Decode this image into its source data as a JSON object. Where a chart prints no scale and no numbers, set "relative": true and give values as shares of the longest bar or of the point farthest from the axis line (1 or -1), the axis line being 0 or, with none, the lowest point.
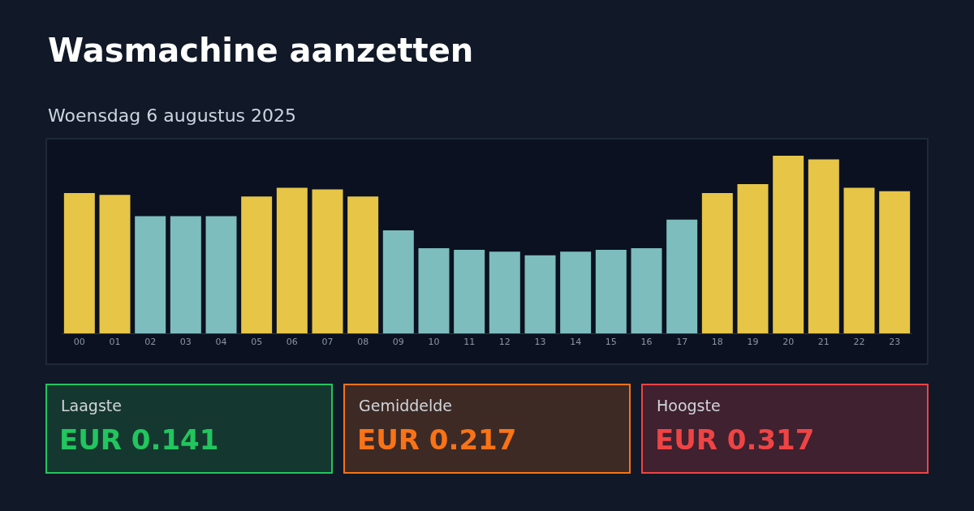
{
  "chart_data": {
    "type": "bar",
    "title": "Wasmachine aanzetten",
    "subtitle": "Woensdag 6 augustus 2025",
    "categories": [
      "00",
      "01",
      "02",
      "03",
      "04",
      "05",
      "06",
      "07",
      "08",
      "09",
      "10",
      "11",
      "12",
      "13",
      "14",
      "15",
      "16",
      "17",
      "18",
      "19",
      "20",
      "21",
      "22",
      "23"
    ],
    "values": [
      0.79,
      0.78,
      0.66,
      0.66,
      0.66,
      0.77,
      0.82,
      0.81,
      0.77,
      0.58,
      0.48,
      0.47,
      0.46,
      0.44,
      0.46,
      0.47,
      0.48,
      0.64,
      0.79,
      0.84,
      1,
      0.98,
      0.82,
      0.8
    ],
    "colors": [
      "#e6c547",
      "#e6c547",
      "#7dbdbd",
      "#7dbdbd",
      "#7dbdbd",
      "#e6c547",
      "#e6c547",
      "#e6c547",
      "#e6c547",
      "#7dbdbd",
      "#7dbdbd",
      "#7dbdbd",
      "#7dbdbd",
      "#7dbdbd",
      "#7dbdbd",
      "#7dbdbd",
      "#7dbdbd",
      "#7dbdbd",
      "#e6c547",
      "#e6c547",
      "#e6c547",
      "#e6c547",
      "#e6c547",
      "#e6c547"
    ],
    "relative": true,
    "grid": false,
    "legend": false,
    "annotations": [
      "Laagste",
      "EUR 0.141",
      "Gemiddelde",
      "EUR 0.217",
      "Hoogste",
      "EUR 0.317"
    ]
  }
}
